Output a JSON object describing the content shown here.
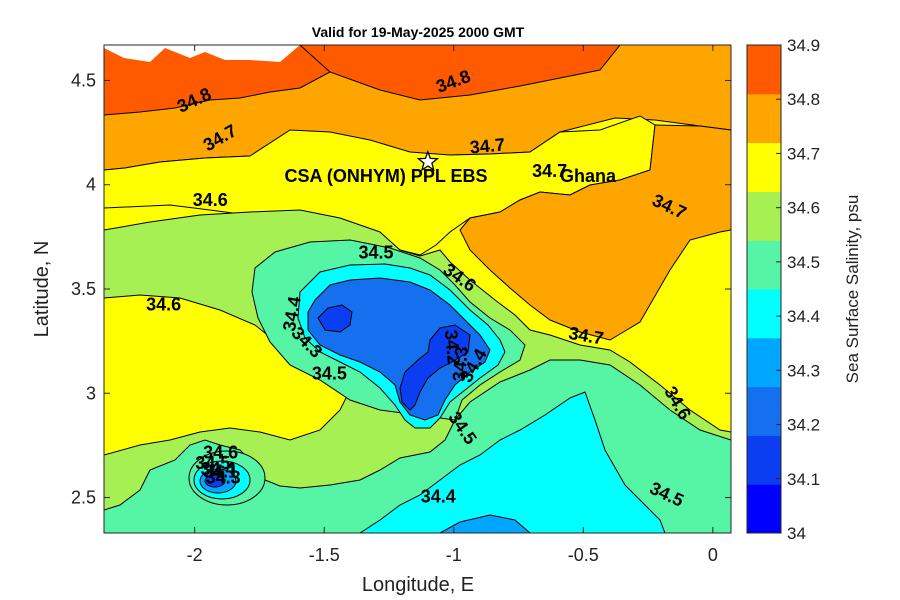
{
  "chart_data": {
    "type": "contour",
    "title": "Valid for 19-May-2025 2000 GMT",
    "xlabel": "Longitude, E",
    "ylabel": "Latitude, N",
    "xlim": [
      -2.35,
      0.07
    ],
    "ylim": [
      2.33,
      4.67
    ],
    "x_ticks": [
      "-2",
      "-1.5",
      "-1",
      "-0.5",
      "0"
    ],
    "x_tick_values": [
      -2,
      -1.5,
      -1,
      -0.5,
      0
    ],
    "y_ticks": [
      "2.5",
      "3",
      "3.5",
      "4",
      "4.5"
    ],
    "y_tick_values": [
      2.5,
      3,
      3.5,
      4,
      4.5
    ],
    "colorbar": {
      "label": "Sea Surface Salinity, psu",
      "ticks": [
        "34",
        "34.1",
        "34.2",
        "34.3",
        "34.4",
        "34.5",
        "34.6",
        "34.7",
        "34.8",
        "34.9"
      ],
      "levels": [
        34.0,
        34.1,
        34.2,
        34.3,
        34.4,
        34.5,
        34.6,
        34.7,
        34.8,
        34.9
      ],
      "colors": [
        "#0000ff",
        "#0a3ef0",
        "#1570f0",
        "#00a6ff",
        "#00ffff",
        "#55f5a5",
        "#a6f054",
        "#ffff00",
        "#ffa500",
        "#ff5a00"
      ]
    },
    "station": {
      "name": "CSA (ONHYM) PPL EBS",
      "lon": -1.1,
      "lat": 4.11
    },
    "region_label": "Ghana",
    "contour_labels": [
      {
        "text": "34.8",
        "lon": -2.0,
        "lat": 4.4,
        "rot": -25
      },
      {
        "text": "34.8",
        "lon": -1.0,
        "lat": 4.49,
        "rot": -20
      },
      {
        "text": "34.7",
        "lon": -1.9,
        "lat": 4.22,
        "rot": -30
      },
      {
        "text": "34.7",
        "lon": -0.87,
        "lat": 4.18,
        "rot": -5
      },
      {
        "text": "34.7",
        "lon": -0.63,
        "lat": 4.06,
        "rot": 0
      },
      {
        "text": "34.7",
        "lon": -0.17,
        "lat": 3.89,
        "rot": 25
      },
      {
        "text": "34.7",
        "lon": -0.49,
        "lat": 3.27,
        "rot": 10
      },
      {
        "text": "34.6",
        "lon": -1.94,
        "lat": 3.92,
        "rot": 0
      },
      {
        "text": "34.6",
        "lon": -2.12,
        "lat": 3.42,
        "rot": 0
      },
      {
        "text": "34.6",
        "lon": -0.98,
        "lat": 3.55,
        "rot": 35
      },
      {
        "text": "34.6",
        "lon": -0.14,
        "lat": 2.95,
        "rot": 60
      },
      {
        "text": "34.6",
        "lon": -1.9,
        "lat": 2.71,
        "rot": 0
      },
      {
        "text": "34.5",
        "lon": -1.3,
        "lat": 3.67,
        "rot": 0
      },
      {
        "text": "34.5",
        "lon": -1.48,
        "lat": 3.09,
        "rot": 0
      },
      {
        "text": "34.5",
        "lon": -0.97,
        "lat": 2.83,
        "rot": 55
      },
      {
        "text": "34.5",
        "lon": -0.18,
        "lat": 2.51,
        "rot": 25
      },
      {
        "text": "34.5",
        "lon": -1.93,
        "lat": 2.66,
        "rot": 0
      },
      {
        "text": "34.4",
        "lon": -1.62,
        "lat": 3.38,
        "rot": -80
      },
      {
        "text": "34.4",
        "lon": -0.92,
        "lat": 3.13,
        "rot": -60
      },
      {
        "text": "34.4",
        "lon": -1.06,
        "lat": 2.5,
        "rot": 0
      },
      {
        "text": "34.4",
        "lon": -1.91,
        "lat": 2.63,
        "rot": 0
      },
      {
        "text": "34.3",
        "lon": -1.57,
        "lat": 3.24,
        "rot": 45
      },
      {
        "text": "34.3",
        "lon": -0.97,
        "lat": 3.14,
        "rot": -85
      },
      {
        "text": "34.3",
        "lon": -1.89,
        "lat": 2.59,
        "rot": 0
      },
      {
        "text": "34.2",
        "lon": -1.01,
        "lat": 3.22,
        "rot": 85
      },
      {
        "text": "34.1",
        "lon": -1.9,
        "lat": 2.62,
        "rot": 0
      }
    ]
  }
}
